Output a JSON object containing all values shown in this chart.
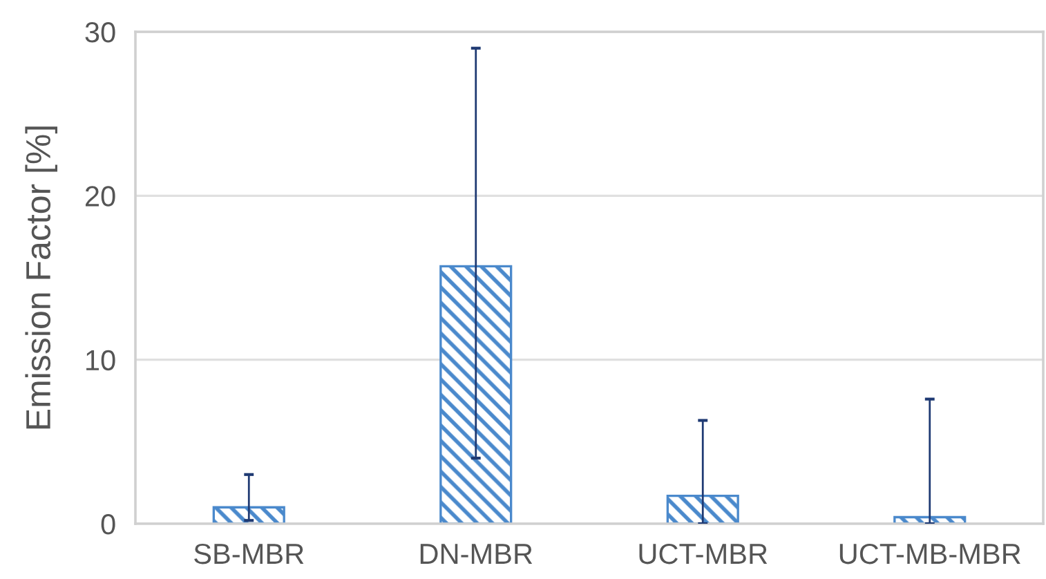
{
  "chart_data": {
    "type": "bar",
    "ylabel": "Emission Factor [%]",
    "categories": [
      "SB-MBR",
      "DN-MBR",
      "UCT-MBR",
      "UCT-MB-MBR"
    ],
    "values": [
      1.0,
      15.7,
      1.7,
      0.4
    ],
    "errors": [
      [
        0.2,
        3.0
      ],
      [
        4.0,
        29.0
      ],
      [
        0,
        6.3
      ],
      [
        0,
        7.6
      ]
    ],
    "color": "#4a89cc",
    "ylim": [
      0,
      30
    ],
    "yticks": [
      0,
      10,
      20,
      30
    ],
    "grid": "y"
  }
}
